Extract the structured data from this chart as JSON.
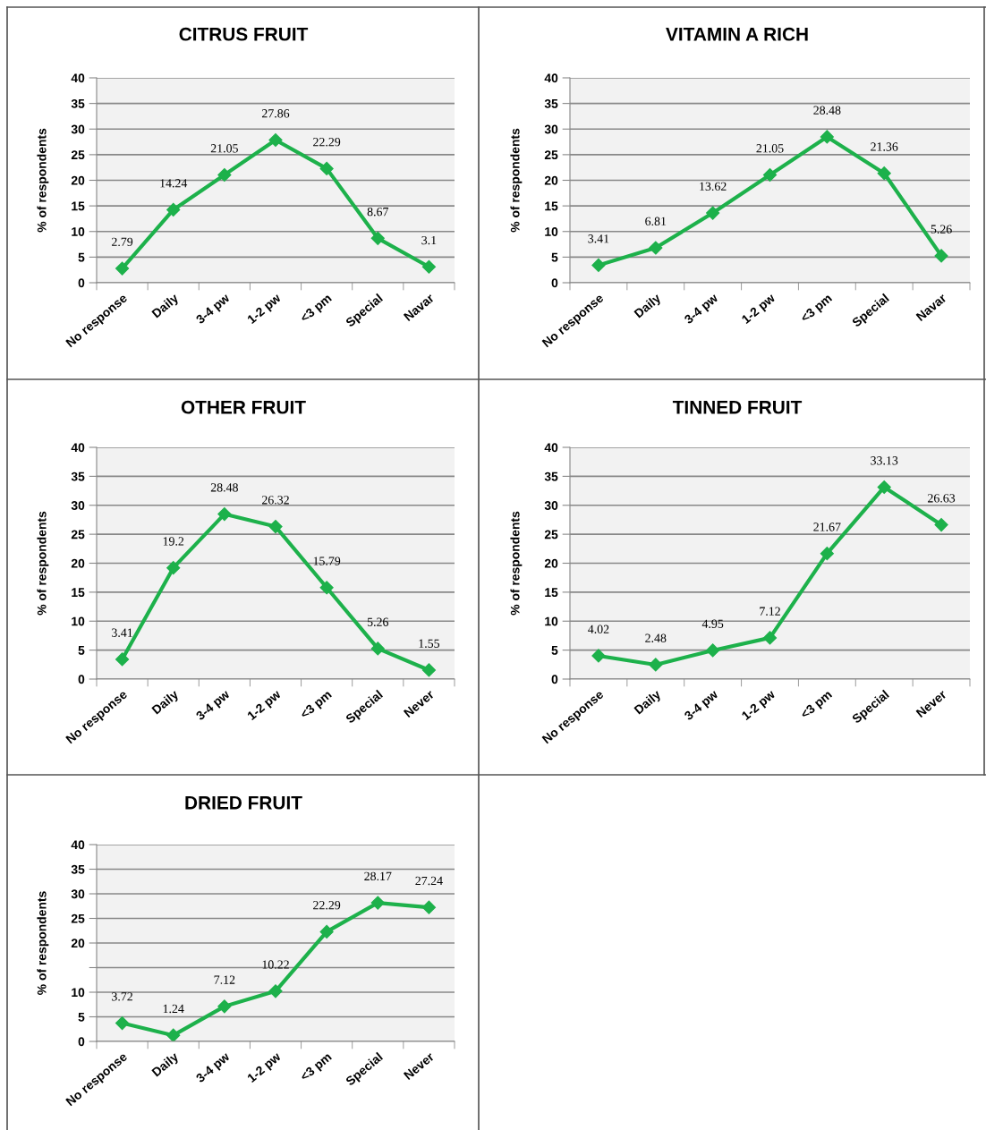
{
  "chart_data": [
    {
      "type": "line",
      "title": "CITRUS FRUIT",
      "ylabel": "% of respondents",
      "categories": [
        "No response",
        "Daily",
        "3-4 pw",
        "1-2 pw",
        "<3 pm",
        "Special",
        "Navar"
      ],
      "series": [
        {
          "color": "#1db14b",
          "values": [
            2.79,
            14.24,
            21.05,
            27.86,
            22.29,
            8.67,
            3.1
          ]
        }
      ],
      "ylim": [
        0,
        40
      ],
      "yticks": [
        0,
        5,
        10,
        15,
        20,
        25,
        30,
        35,
        40
      ],
      "grid": "y",
      "marker": "diamond",
      "data_labels": true
    },
    {
      "type": "line",
      "title": "VITAMIN A RICH",
      "ylabel": "% of respondents",
      "categories": [
        "No response",
        "Daily",
        "3-4 pw",
        "1-2 pw",
        "<3 pm",
        "Special",
        "Navar"
      ],
      "series": [
        {
          "color": "#1db14b",
          "values": [
            3.41,
            6.81,
            13.62,
            21.05,
            28.48,
            21.36,
            5.26
          ]
        }
      ],
      "ylim": [
        0,
        40
      ],
      "yticks": [
        0,
        5,
        10,
        15,
        20,
        25,
        30,
        35,
        40
      ],
      "grid": "y",
      "marker": "diamond",
      "data_labels": true
    },
    {
      "type": "line",
      "title": "OTHER FRUIT",
      "ylabel": "% of respondents",
      "categories": [
        "No response",
        "Daily",
        "3-4 pw",
        "1-2 pw",
        "<3 pm",
        "Special",
        "Never"
      ],
      "series": [
        {
          "color": "#1db14b",
          "values": [
            3.41,
            19.2,
            28.48,
            26.32,
            15.79,
            5.26,
            1.55
          ]
        }
      ],
      "ylim": [
        0,
        40
      ],
      "yticks": [
        0,
        5,
        10,
        15,
        20,
        25,
        30,
        35,
        40
      ],
      "grid": "y",
      "marker": "diamond",
      "data_labels": true
    },
    {
      "type": "line",
      "title": "TINNED FRUIT",
      "ylabel": "% of respondents",
      "categories": [
        "No response",
        "Daily",
        "3-4 pw",
        "1-2 pw",
        "<3 pm",
        "Special",
        "Never"
      ],
      "series": [
        {
          "color": "#1db14b",
          "values": [
            4.02,
            2.48,
            4.95,
            7.12,
            21.67,
            33.13,
            26.63
          ]
        }
      ],
      "ylim": [
        0,
        40
      ],
      "yticks": [
        0,
        5,
        10,
        15,
        20,
        25,
        30,
        35,
        40
      ],
      "grid": "y",
      "marker": "diamond",
      "data_labels": true
    },
    {
      "type": "line",
      "title": "DRIED FRUIT",
      "ylabel": "% of respondents",
      "categories": [
        "No response",
        "Daily",
        "3-4 pw",
        "1-2 pw",
        "<3 pm",
        "Special",
        "Never"
      ],
      "series": [
        {
          "color": "#1db14b",
          "values": [
            3.72,
            1.24,
            7.12,
            10.22,
            22.29,
            28.17,
            27.24
          ]
        }
      ],
      "ylim": [
        0,
        40
      ],
      "yticks": [
        0,
        5,
        10,
        {
          "value": 15,
          "label": null
        },
        20,
        25,
        30,
        35,
        40
      ],
      "grid": "y",
      "marker": "diamond",
      "data_labels": true
    }
  ]
}
